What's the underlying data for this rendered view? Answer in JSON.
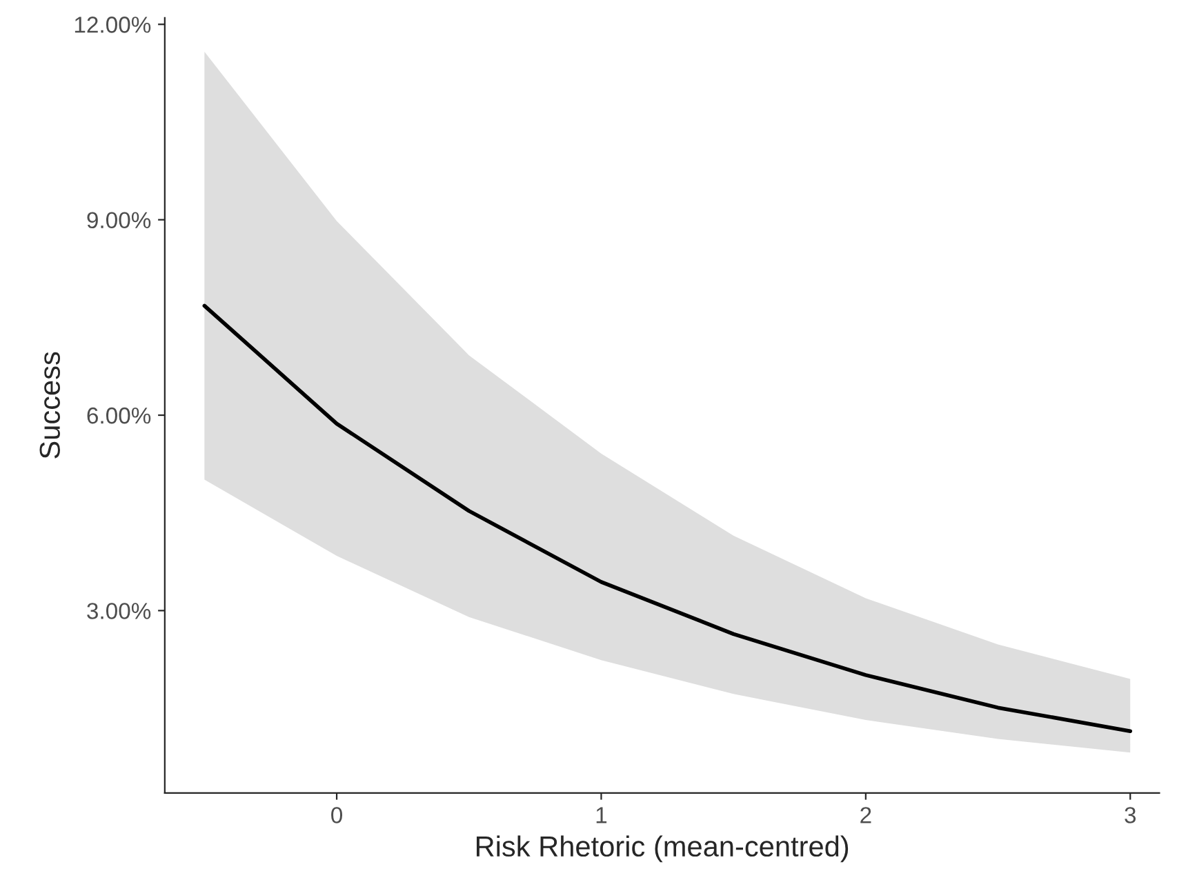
{
  "chart_data": {
    "type": "line",
    "xlabel": "Risk Rhetoric (mean-centred)",
    "ylabel": "Success",
    "x": [
      -0.5,
      0,
      0.5,
      1,
      1.5,
      2,
      2.5,
      3
    ],
    "series": [
      {
        "color": "#000000",
        "values": [
          7.68,
          5.87,
          4.53,
          3.44,
          2.64,
          2.01,
          1.51,
          1.15
        ],
        "upper": [
          11.58,
          8.98,
          6.92,
          5.41,
          4.15,
          3.19,
          2.48,
          1.95
        ],
        "lower": [
          5.01,
          3.84,
          2.9,
          2.24,
          1.72,
          1.32,
          1.03,
          0.82
        ]
      }
    ],
    "xlim": [
      -0.65,
      3.11
    ],
    "xticks": [
      0,
      1,
      2,
      3
    ],
    "ylim": [
      0.2,
      12.1
    ],
    "yticks": [
      {
        "value": 3,
        "label": "3.00%"
      },
      {
        "value": 6,
        "label": "6.00%"
      },
      {
        "value": 9,
        "label": "9.00%"
      },
      {
        "value": 12,
        "label": "12.00%"
      }
    ],
    "grid": false,
    "legend": false,
    "line_style": "solid",
    "marker": "none"
  }
}
